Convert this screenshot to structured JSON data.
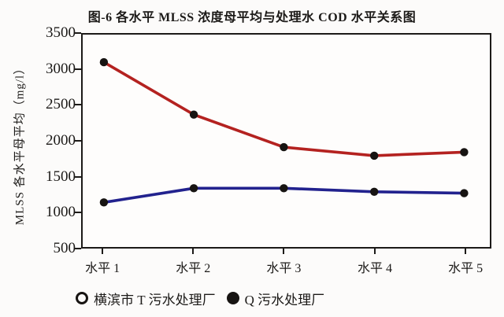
{
  "title": "图-6 各水平 MLSS 浓度母平均与处理水 COD 水平关系图",
  "chart_data": {
    "type": "line",
    "title": "图-6 各水平 MLSS 浓度母平均与处理水 COD 水平关系图",
    "categories": [
      "水平 1",
      "水平 2",
      "水平 3",
      "水平 4",
      "水平 5"
    ],
    "series": [
      {
        "name": "横滨市 T 污水处理厂",
        "legend_marker": "open-circle",
        "line_color": "#22228e",
        "values": [
          1130,
          1330,
          1330,
          1280,
          1260
        ]
      },
      {
        "name": "Q 污水处理厂",
        "legend_marker": "filled-circle",
        "line_color": "#b42220",
        "values": [
          3110,
          2370,
          1910,
          1790,
          1840
        ]
      }
    ],
    "xlabel": "",
    "ylabel": "MLSS 各水平母平均（mg/l）",
    "ylim": [
      500,
      3500
    ],
    "yticks": [
      3500,
      3000,
      2500,
      2000,
      1500,
      1000,
      500
    ],
    "grid": false,
    "legend_position": "bottom",
    "point_color": "#171412",
    "axis_color": "#1c1a18"
  }
}
